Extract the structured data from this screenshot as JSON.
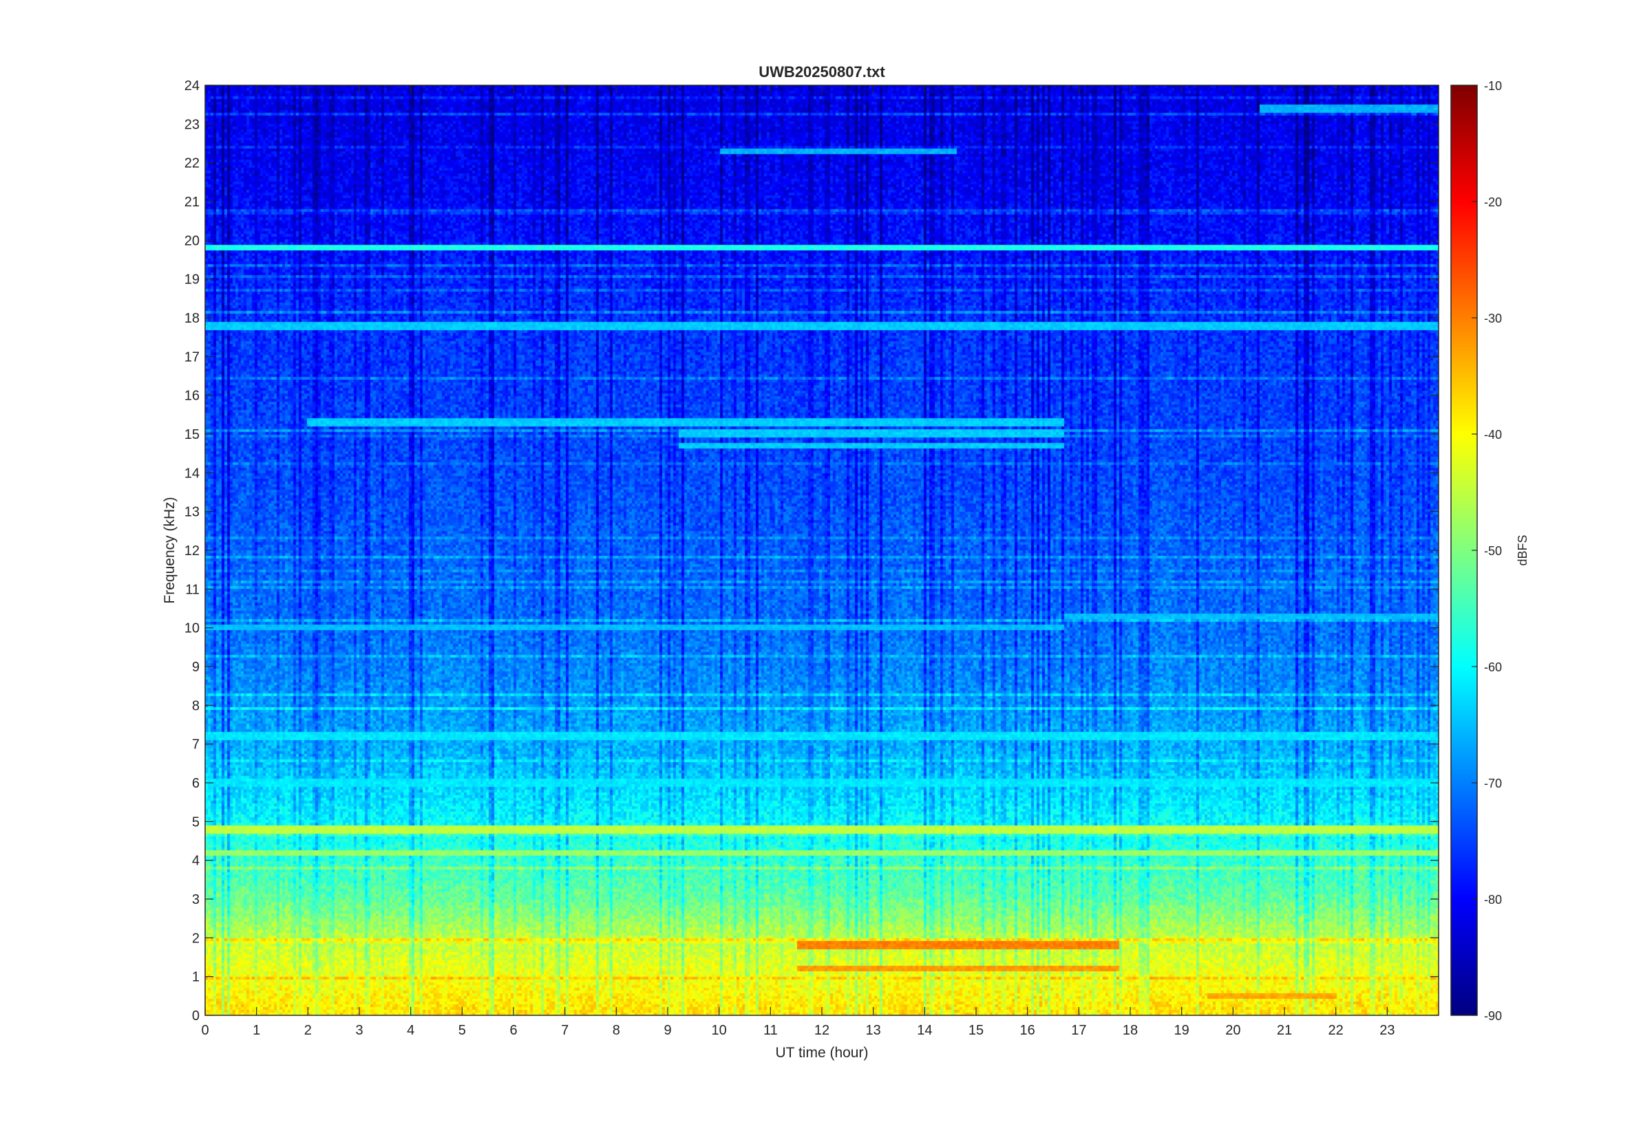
{
  "chart_data": {
    "type": "heatmap",
    "title": "UWB20250807.txt",
    "xlabel": "UT time (hour)",
    "ylabel": "Frequency (kHz)",
    "xlim": [
      0,
      24
    ],
    "ylim": [
      0,
      24
    ],
    "x_ticks": [
      0,
      1,
      2,
      3,
      4,
      5,
      6,
      7,
      8,
      9,
      10,
      11,
      12,
      13,
      14,
      15,
      16,
      17,
      18,
      19,
      20,
      21,
      22,
      23
    ],
    "y_ticks": [
      0,
      1,
      2,
      3,
      4,
      5,
      6,
      7,
      8,
      9,
      10,
      11,
      12,
      13,
      14,
      15,
      16,
      17,
      18,
      19,
      20,
      21,
      22,
      23,
      24
    ],
    "colorbar": {
      "label": "dBFS",
      "range": [
        -90,
        -10
      ],
      "ticks": [
        -90,
        -80,
        -70,
        -60,
        -50,
        -40,
        -30,
        -20,
        -10
      ],
      "colormap": "jet"
    },
    "approx_level_profile": [
      {
        "freq_khz": 0.2,
        "dbfs": -38
      },
      {
        "freq_khz": 1.0,
        "dbfs": -41
      },
      {
        "freq_khz": 2.0,
        "dbfs": -45
      },
      {
        "freq_khz": 3.0,
        "dbfs": -52
      },
      {
        "freq_khz": 4.0,
        "dbfs": -56
      },
      {
        "freq_khz": 5.0,
        "dbfs": -60
      },
      {
        "freq_khz": 6.5,
        "dbfs": -65
      },
      {
        "freq_khz": 8.0,
        "dbfs": -68
      },
      {
        "freq_khz": 10.0,
        "dbfs": -71
      },
      {
        "freq_khz": 14.0,
        "dbfs": -74
      },
      {
        "freq_khz": 18.0,
        "dbfs": -76
      },
      {
        "freq_khz": 21.0,
        "dbfs": -80
      },
      {
        "freq_khz": 24.0,
        "dbfs": -82
      }
    ],
    "narrowband_lines": [
      {
        "freq_khz": 19.8,
        "dbfs": -58,
        "t_start": 0,
        "t_end": 24
      },
      {
        "freq_khz": 17.8,
        "dbfs": -64,
        "t_start": 0,
        "t_end": 24
      },
      {
        "freq_khz": 23.4,
        "dbfs": -66,
        "t_start": 20.5,
        "t_end": 24
      },
      {
        "freq_khz": 22.3,
        "dbfs": -66,
        "t_start": 10,
        "t_end": 14.6
      },
      {
        "freq_khz": 15.3,
        "dbfs": -64,
        "t_start": 2,
        "t_end": 16.7
      },
      {
        "freq_khz": 15.0,
        "dbfs": -64,
        "t_start": 9.2,
        "t_end": 16.7
      },
      {
        "freq_khz": 14.7,
        "dbfs": -64,
        "t_start": 9.2,
        "t_end": 16.7
      },
      {
        "freq_khz": 10.3,
        "dbfs": -65,
        "t_start": 16.7,
        "t_end": 24
      },
      {
        "freq_khz": 10.0,
        "dbfs": -65,
        "t_start": 0,
        "t_end": 16.7
      },
      {
        "freq_khz": 7.2,
        "dbfs": -62,
        "t_start": 0,
        "t_end": 24
      },
      {
        "freq_khz": 6.0,
        "dbfs": -62,
        "t_start": 0,
        "t_end": 24
      },
      {
        "freq_khz": 4.8,
        "dbfs": -45,
        "t_start": 0,
        "t_end": 24
      },
      {
        "freq_khz": 4.2,
        "dbfs": -48,
        "t_start": 0,
        "t_end": 24
      },
      {
        "freq_khz": 1.8,
        "dbfs": -30,
        "t_start": 11.5,
        "t_end": 17.8
      },
      {
        "freq_khz": 1.2,
        "dbfs": -32,
        "t_start": 11.5,
        "t_end": 17.8
      },
      {
        "freq_khz": 0.5,
        "dbfs": -33,
        "t_start": 19.5,
        "t_end": 22
      }
    ]
  }
}
